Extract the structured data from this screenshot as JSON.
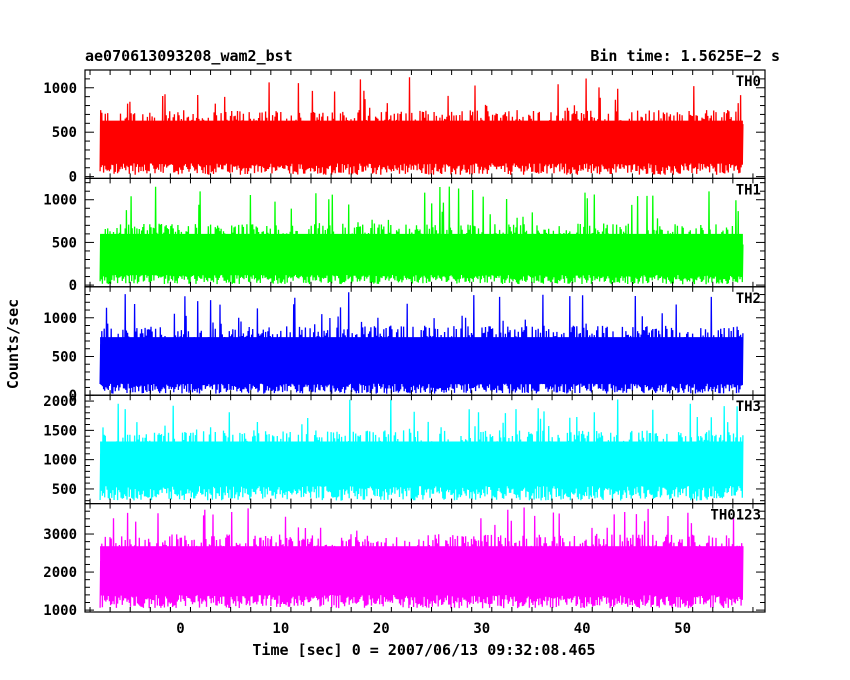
{
  "header": {
    "left": "ae070613093208_wam2_bst",
    "right": "Bin time: 1.5625E−2 s"
  },
  "chart_data": {
    "type": "line",
    "xlabel": "Time [sec] 0 = 2007/06/13 09:32:08.465",
    "ylabel": "Counts/sec",
    "xlim": [
      -9.5,
      58.2
    ],
    "x_ticks": [
      0,
      10,
      20,
      30,
      40,
      50
    ],
    "x_tick_labels": [
      "0",
      "10",
      "20",
      "30",
      "40",
      "50"
    ],
    "data_x_range": [
      -8,
      56
    ],
    "grid": false,
    "panels": [
      {
        "name": "TH0",
        "color": "#ff0000",
        "ylim": [
          -20,
          1200
        ],
        "yticks": [
          0,
          500,
          1000
        ],
        "baseline": 150,
        "typical_peak": 750,
        "max": 1130,
        "min": 20
      },
      {
        "name": "TH1",
        "color": "#00ff00",
        "ylim": [
          -20,
          1250
        ],
        "yticks": [
          0,
          500,
          1000
        ],
        "baseline": 120,
        "typical_peak": 720,
        "max": 1160,
        "min": 10
      },
      {
        "name": "TH2",
        "color": "#0000ff",
        "ylim": [
          0,
          1400
        ],
        "yticks": [
          0,
          500,
          1000
        ],
        "baseline": 150,
        "typical_peak": 900,
        "max": 1330,
        "min": 20
      },
      {
        "name": "TH3",
        "color": "#00ffff",
        "ylim": [
          250,
          2100
        ],
        "yticks": [
          500,
          1000,
          1500,
          2000
        ],
        "baseline": 550,
        "typical_peak": 1500,
        "max": 2030,
        "min": 300
      },
      {
        "name": "TH0123",
        "color": "#ff00ff",
        "ylim": [
          950,
          3800
        ],
        "yticks": [
          1000,
          2000,
          3000
        ],
        "baseline": 1400,
        "typical_peak": 3000,
        "max": 3700,
        "min": 1050
      }
    ]
  }
}
